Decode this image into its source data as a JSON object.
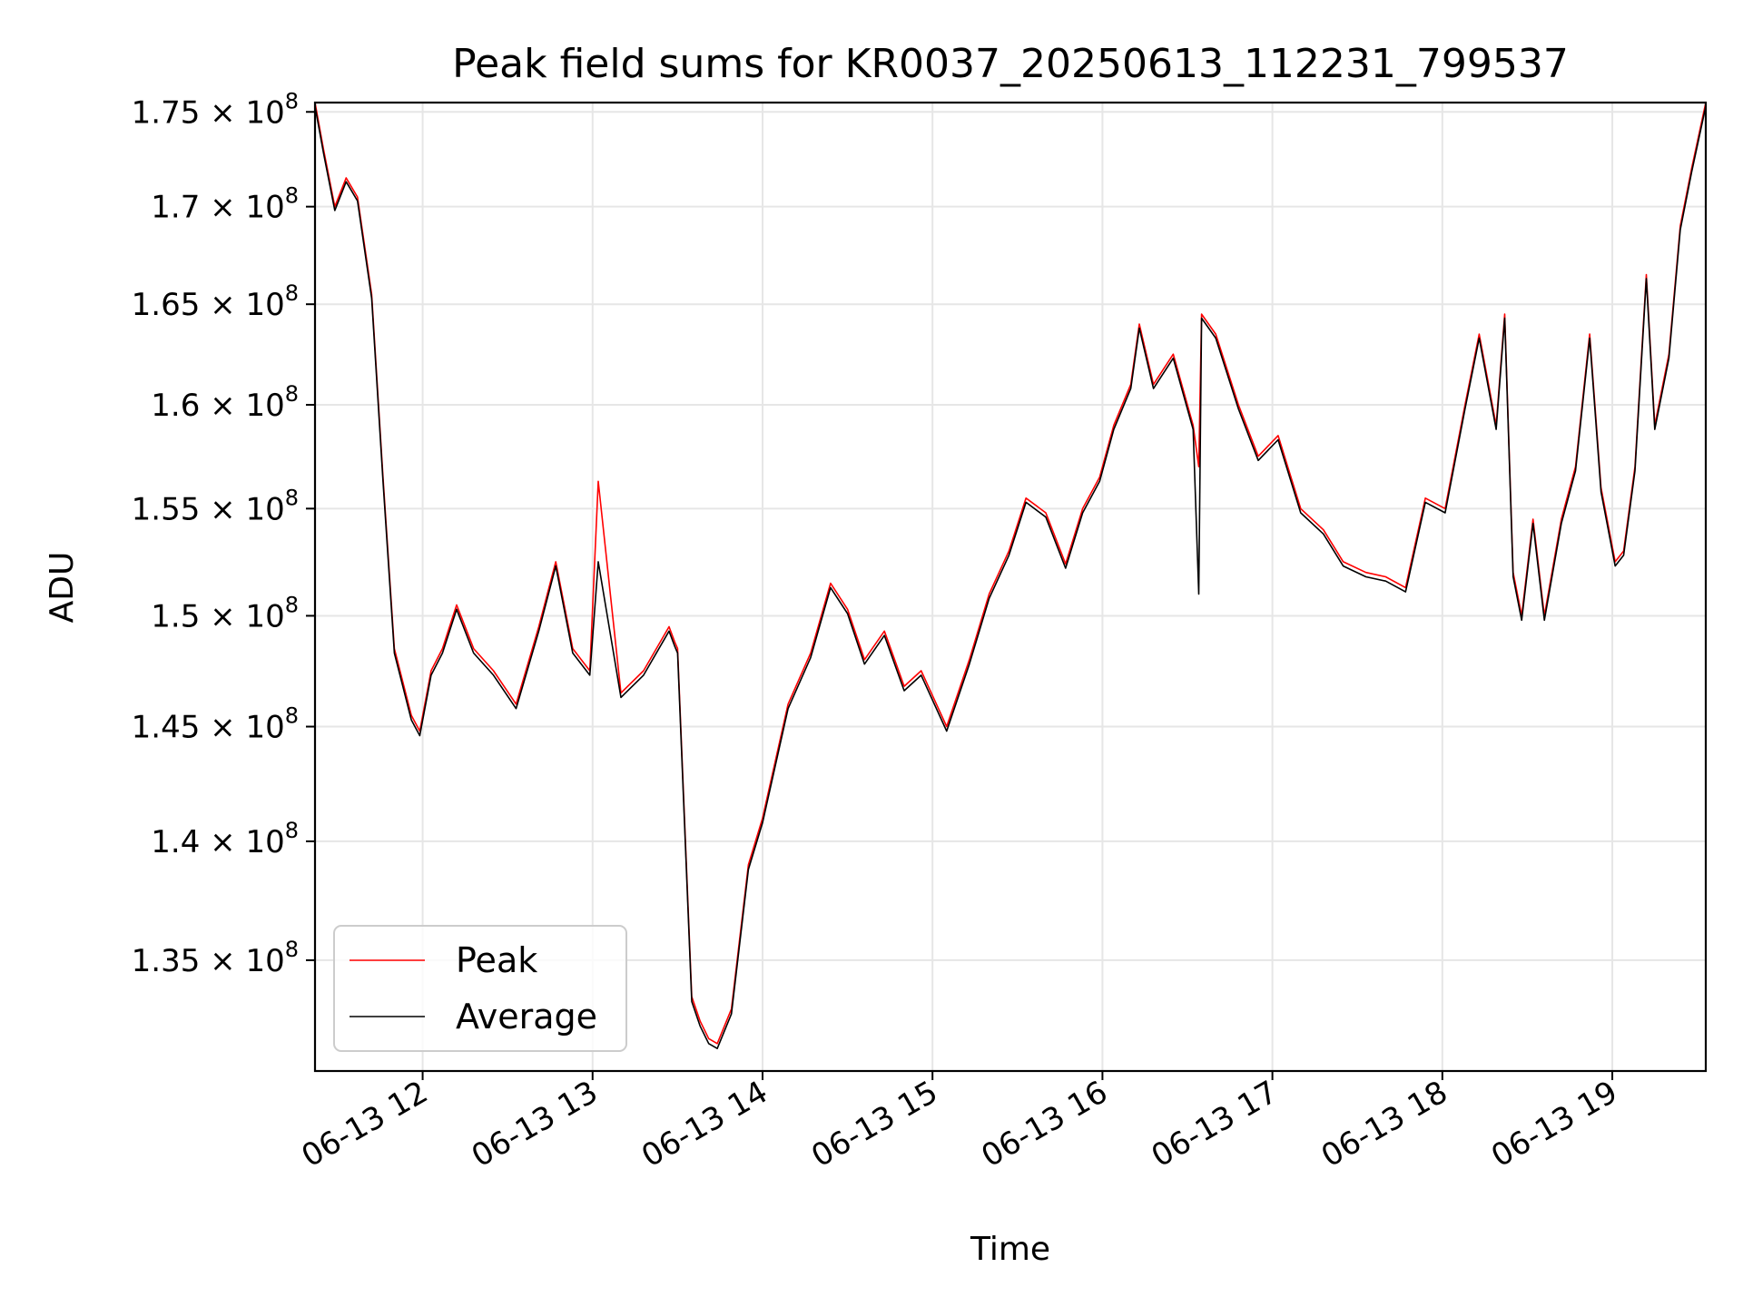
{
  "chart_data": {
    "type": "line",
    "title": "Peak field sums for KR0037_20250613_112231_799537",
    "xlabel": "Time",
    "ylabel": "ADU",
    "xlim": [
      "2025-06-13 11:22",
      "2025-06-13 19:33"
    ],
    "ylim": [
      130500000,
      175500000
    ],
    "y_scale": "log",
    "grid": true,
    "legend_position": "lower-left",
    "x_ticks": [
      {
        "time": "2025-06-13 12:00",
        "label": "06-13 12"
      },
      {
        "time": "2025-06-13 13:00",
        "label": "06-13 13"
      },
      {
        "time": "2025-06-13 14:00",
        "label": "06-13 14"
      },
      {
        "time": "2025-06-13 15:00",
        "label": "06-13 15"
      },
      {
        "time": "2025-06-13 16:00",
        "label": "06-13 16"
      },
      {
        "time": "2025-06-13 17:00",
        "label": "06-13 17"
      },
      {
        "time": "2025-06-13 18:00",
        "label": "06-13 18"
      },
      {
        "time": "2025-06-13 19:00",
        "label": "06-13 19"
      }
    ],
    "y_ticks": [
      {
        "value": 135000000,
        "mantissa": "1.35",
        "exponent": "8"
      },
      {
        "value": 140000000,
        "mantissa": "1.4",
        "exponent": "8"
      },
      {
        "value": 145000000,
        "mantissa": "1.45",
        "exponent": "8"
      },
      {
        "value": 150000000,
        "mantissa": "1.5",
        "exponent": "8"
      },
      {
        "value": 155000000,
        "mantissa": "1.55",
        "exponent": "8"
      },
      {
        "value": 160000000,
        "mantissa": "1.6",
        "exponent": "8"
      },
      {
        "value": 165000000,
        "mantissa": "1.65",
        "exponent": "8"
      },
      {
        "value": 170000000,
        "mantissa": "1.7",
        "exponent": "8"
      },
      {
        "value": 175000000,
        "mantissa": "1.75",
        "exponent": "8"
      }
    ],
    "times": [
      "2025-06-13 11:22",
      "2025-06-13 11:25",
      "2025-06-13 11:29",
      "2025-06-13 11:33",
      "2025-06-13 11:37",
      "2025-06-13 11:42",
      "2025-06-13 11:46",
      "2025-06-13 11:50",
      "2025-06-13 11:53",
      "2025-06-13 11:56",
      "2025-06-13 11:59",
      "2025-06-13 12:03",
      "2025-06-13 12:07",
      "2025-06-13 12:12",
      "2025-06-13 12:18",
      "2025-06-13 12:25",
      "2025-06-13 12:33",
      "2025-06-13 12:41",
      "2025-06-13 12:47",
      "2025-06-13 12:53",
      "2025-06-13 12:59",
      "2025-06-13 13:02",
      "2025-06-13 13:10",
      "2025-06-13 13:18",
      "2025-06-13 13:27",
      "2025-06-13 13:29",
      "2025-06-13 13:30",
      "2025-06-13 13:35",
      "2025-06-13 13:38",
      "2025-06-13 13:41",
      "2025-06-13 13:44",
      "2025-06-13 13:49",
      "2025-06-13 13:55",
      "2025-06-13 14:00",
      "2025-06-13 14:09",
      "2025-06-13 14:17",
      "2025-06-13 14:24",
      "2025-06-13 14:30",
      "2025-06-13 14:36",
      "2025-06-13 14:43",
      "2025-06-13 14:50",
      "2025-06-13 14:56",
      "2025-06-13 15:05",
      "2025-06-13 15:13",
      "2025-06-13 15:20",
      "2025-06-13 15:27",
      "2025-06-13 15:33",
      "2025-06-13 15:40",
      "2025-06-13 15:47",
      "2025-06-13 15:53",
      "2025-06-13 15:59",
      "2025-06-13 16:04",
      "2025-06-13 16:10",
      "2025-06-13 16:13",
      "2025-06-13 16:18",
      "2025-06-13 16:25",
      "2025-06-13 16:32",
      "2025-06-13 16:34",
      "2025-06-13 16:35",
      "2025-06-13 16:40",
      "2025-06-13 16:48",
      "2025-06-13 16:55",
      "2025-06-13 17:02",
      "2025-06-13 17:10",
      "2025-06-13 17:18",
      "2025-06-13 17:25",
      "2025-06-13 17:33",
      "2025-06-13 17:40",
      "2025-06-13 17:47",
      "2025-06-13 17:54",
      "2025-06-13 18:01",
      "2025-06-13 18:08",
      "2025-06-13 18:13",
      "2025-06-13 18:19",
      "2025-06-13 18:22",
      "2025-06-13 18:25",
      "2025-06-13 18:28",
      "2025-06-13 18:32",
      "2025-06-13 18:36",
      "2025-06-13 18:42",
      "2025-06-13 18:47",
      "2025-06-13 18:52",
      "2025-06-13 18:56",
      "2025-06-13 19:01",
      "2025-06-13 19:04",
      "2025-06-13 19:08",
      "2025-06-13 19:12",
      "2025-06-13 19:15",
      "2025-06-13 19:20",
      "2025-06-13 19:24",
      "2025-06-13 19:28",
      "2025-06-13 19:33"
    ],
    "series": [
      {
        "name": "Peak",
        "color": "#ff0000",
        "values": [
          175500000,
          173000000,
          170000000,
          171500000,
          170500000,
          165500000,
          156500000,
          148500000,
          147000000,
          145500000,
          144800000,
          147500000,
          148500000,
          150500000,
          148500000,
          147500000,
          146000000,
          149500000,
          152500000,
          148500000,
          147500000,
          156300000,
          146500000,
          147500000,
          149500000,
          148800000,
          148500000,
          133500000,
          132500000,
          131800000,
          131600000,
          133000000,
          139000000,
          141000000,
          146000000,
          148300000,
          151500000,
          150300000,
          148000000,
          149300000,
          146800000,
          147500000,
          145000000,
          148000000,
          151000000,
          153000000,
          155500000,
          154800000,
          152400000,
          155000000,
          156500000,
          159000000,
          161000000,
          164000000,
          161000000,
          162500000,
          159000000,
          157000000,
          164500000,
          163500000,
          160000000,
          157500000,
          158500000,
          155000000,
          154000000,
          152500000,
          152000000,
          151800000,
          151300000,
          155500000,
          155000000,
          160000000,
          163500000,
          159000000,
          164500000,
          152000000,
          150000000,
          154500000,
          150000000,
          154500000,
          157000000,
          163500000,
          156000000,
          152500000,
          153000000,
          157000000,
          166500000,
          159000000,
          162500000,
          169000000,
          172000000,
          175500000
        ]
      },
      {
        "name": "Average",
        "color": "#000000",
        "values": [
          175300000,
          172800000,
          169800000,
          171300000,
          170300000,
          165300000,
          156300000,
          148300000,
          146800000,
          145300000,
          144600000,
          147300000,
          148300000,
          150300000,
          148300000,
          147300000,
          145800000,
          149300000,
          152300000,
          148300000,
          147300000,
          152500000,
          146300000,
          147300000,
          149300000,
          148600000,
          148300000,
          133300000,
          132300000,
          131600000,
          131400000,
          132800000,
          138800000,
          140800000,
          145800000,
          148100000,
          151300000,
          150100000,
          147800000,
          149100000,
          146600000,
          147300000,
          144800000,
          147800000,
          150800000,
          152800000,
          155300000,
          154600000,
          152200000,
          154800000,
          156300000,
          158800000,
          160800000,
          163800000,
          160800000,
          162300000,
          158800000,
          151000000,
          164300000,
          163300000,
          159800000,
          157300000,
          158300000,
          154800000,
          153800000,
          152300000,
          151800000,
          151600000,
          151100000,
          155300000,
          154800000,
          159800000,
          163300000,
          158800000,
          164300000,
          151800000,
          149800000,
          154300000,
          149800000,
          154300000,
          156800000,
          163300000,
          155800000,
          152300000,
          152800000,
          156800000,
          166300000,
          158800000,
          162300000,
          168800000,
          171800000,
          175300000
        ]
      }
    ]
  }
}
